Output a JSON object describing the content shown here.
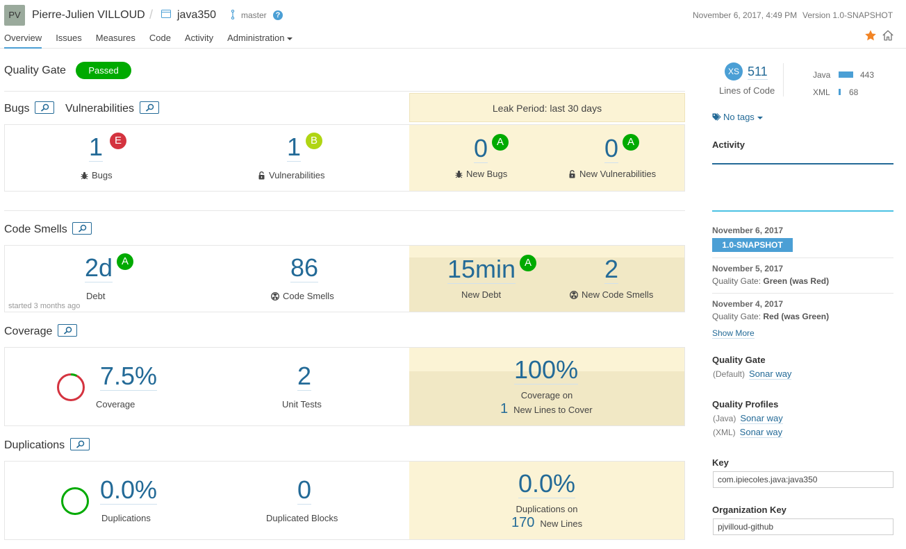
{
  "header": {
    "avatar_initials": "PV",
    "organization": "Pierre-Julien VILLOUD",
    "separator": "/",
    "project": "java350",
    "branch": "master",
    "help": "?",
    "date": "November 6, 2017, 4:49 PM",
    "version": "Version 1.0-SNAPSHOT",
    "nav": [
      "Overview",
      "Issues",
      "Measures",
      "Code",
      "Activity",
      "Administration"
    ],
    "active_tab": "Overview"
  },
  "quality_gate": {
    "label": "Quality Gate",
    "status": "Passed",
    "status_color": "#00aa00"
  },
  "bugs_section": {
    "title_bugs": "Bugs",
    "title_vulns": "Vulnerabilities",
    "leak_period": "Leak Period: last 30 days",
    "bugs": {
      "value": "1",
      "rating": "E",
      "label": "Bugs"
    },
    "vulnerabilities": {
      "value": "1",
      "rating": "B",
      "label": "Vulnerabilities"
    },
    "new_bugs": {
      "value": "0",
      "rating": "A",
      "label": "New Bugs"
    },
    "new_vulnerabilities": {
      "value": "0",
      "rating": "A",
      "label": "New Vulnerabilities"
    }
  },
  "code_smells_section": {
    "title": "Code Smells",
    "debt": {
      "value": "2d",
      "rating": "A",
      "label": "Debt",
      "note": "started 3 months ago"
    },
    "code_smells": {
      "value": "86",
      "label": "Code Smells"
    },
    "new_debt": {
      "value": "15min",
      "rating": "A",
      "label": "New Debt"
    },
    "new_code_smells": {
      "value": "2",
      "label": "New Code Smells"
    }
  },
  "coverage_section": {
    "title": "Coverage",
    "coverage": {
      "value": "7.5%",
      "label": "Coverage",
      "fraction": 0.075
    },
    "unit_tests": {
      "value": "2",
      "label": "Unit Tests"
    },
    "new_coverage": {
      "value": "100%",
      "label": "Coverage on",
      "lines": "1",
      "lines_label": "New Lines to Cover"
    }
  },
  "duplications_section": {
    "title": "Duplications",
    "duplications": {
      "value": "0.0%",
      "label": "Duplications"
    },
    "duplicated_blocks": {
      "value": "0",
      "label": "Duplicated Blocks"
    },
    "new_duplications": {
      "value": "0.0%",
      "label": "Duplications on",
      "lines": "170",
      "lines_label": "New Lines"
    }
  },
  "sidebar": {
    "size_badge": "XS",
    "lines_of_code": "511",
    "lines_of_code_label": "Lines of Code",
    "languages": [
      {
        "name": "Java",
        "value": "443"
      },
      {
        "name": "XML",
        "value": "68"
      }
    ],
    "tags": "No tags",
    "activity_title": "Activity",
    "events": [
      {
        "date": "November 6, 2017",
        "version": "1.0-SNAPSHOT"
      },
      {
        "date": "November 5, 2017",
        "prefix": "Quality Gate:",
        "text": "Green (was Red)"
      },
      {
        "date": "November 4, 2017",
        "prefix": "Quality Gate:",
        "text": "Red (was Green)"
      }
    ],
    "show_more": "Show More",
    "quality_gate_title": "Quality Gate",
    "quality_gate_default": "(Default)",
    "quality_gate_name": "Sonar way",
    "quality_profiles_title": "Quality Profiles",
    "profiles": [
      {
        "lang": "(Java)",
        "name": "Sonar way"
      },
      {
        "lang": "(XML)",
        "name": "Sonar way"
      }
    ],
    "key_title": "Key",
    "key_value": "com.ipiecoles.java:java350",
    "org_key_title": "Organization Key",
    "org_key_value": "pjvilloud-github"
  },
  "colors": {
    "accent": "#4b9fd5",
    "link": "#236a97",
    "leak_bg": "#fbf3d5",
    "rating_A": "#00aa00",
    "rating_B": "#b0d513",
    "rating_E": "#d4333f",
    "coverage_red": "#d4333f"
  }
}
